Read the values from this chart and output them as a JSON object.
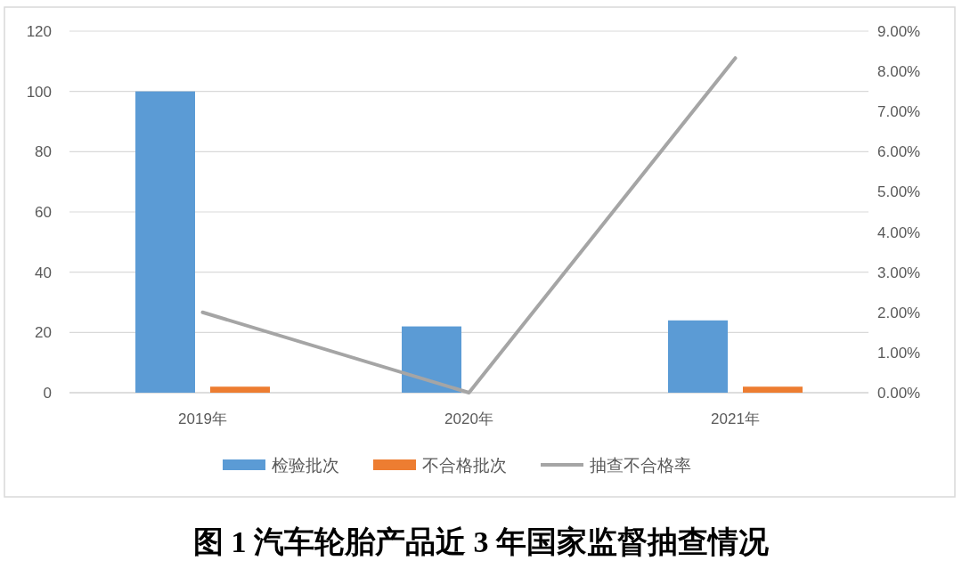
{
  "chart_data": {
    "type": "bar",
    "title": "图 1  汽车轮胎产品近 3 年国家监督抽查情况",
    "categories": [
      "2019年",
      "2020年",
      "2021年"
    ],
    "series": [
      {
        "name": "检验批次",
        "color": "#5b9bd5",
        "values": [
          100,
          22,
          24
        ]
      },
      {
        "name": "不合格批次",
        "color": "#ed7d31",
        "values": [
          2,
          0,
          2
        ]
      },
      {
        "name": "抽查不合格率",
        "color": "#a5a5a5",
        "type": "line",
        "axis": "y2",
        "values": [
          2,
          0,
          8.33
        ]
      }
    ],
    "ylim": [
      0,
      120
    ],
    "yticks": [
      0,
      20,
      40,
      60,
      80,
      100,
      120
    ],
    "y2lim": [
      0,
      9
    ],
    "y2ticks": [
      {
        "value": 0,
        "label": "0.00%"
      },
      {
        "value": 1,
        "label": "1.00%"
      },
      {
        "value": 2,
        "label": "2.00%"
      },
      {
        "value": 3,
        "label": "3.00%"
      },
      {
        "value": 4,
        "label": "4.00%"
      },
      {
        "value": 5,
        "label": "5.00%"
      },
      {
        "value": 6,
        "label": "6.00%"
      },
      {
        "value": 7,
        "label": "7.00%"
      },
      {
        "value": 8,
        "label": "8.00%"
      },
      {
        "value": 9,
        "label": "9.00%"
      }
    ],
    "grid": "y",
    "legend": "bottom"
  }
}
